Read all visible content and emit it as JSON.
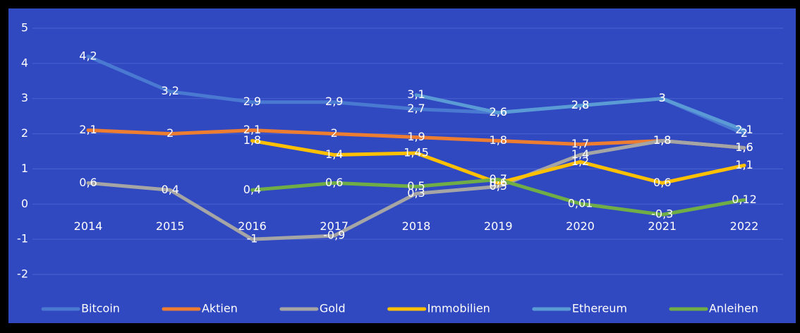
{
  "chart_data": {
    "type": "line",
    "categories": [
      "2014",
      "2015",
      "2016",
      "2017",
      "2018",
      "2019",
      "2020",
      "2021",
      "2022"
    ],
    "series": [
      {
        "name": "Bitcoin",
        "color": "#4a79d2",
        "values": [
          4.2,
          3.2,
          2.9,
          2.9,
          2.7,
          2.6,
          2.8,
          3,
          2
        ],
        "value_labels": [
          "4,2",
          "3,2",
          "2,9",
          "2,9",
          "2,7",
          "2,6",
          "2,8",
          "3",
          "2"
        ]
      },
      {
        "name": "Aktien",
        "color": "#ed7d31",
        "values": [
          2.1,
          2,
          2.1,
          2,
          1.9,
          1.8,
          1.7,
          1.8,
          1.6
        ],
        "value_labels": [
          "2,1",
          "2",
          "2,1",
          "2",
          "1,9",
          "1,8",
          "1,7",
          "1,8",
          "1,6"
        ]
      },
      {
        "name": "Gold",
        "color": "#a5a5a5",
        "values": [
          0.6,
          0.4,
          -1,
          -0.9,
          0.3,
          0.5,
          1.4,
          1.8,
          1.6
        ],
        "value_labels": [
          "0,6",
          "0,4",
          "-1",
          "-0,9",
          "0,3",
          "0,5",
          "1,4",
          "1,8",
          "1,6"
        ]
      },
      {
        "name": "Immobilien",
        "color": "#ffc000",
        "values": [
          null,
          null,
          1.8,
          1.4,
          1.45,
          0.6,
          1.2,
          0.6,
          1.1
        ],
        "value_labels": [
          null,
          null,
          "1,8",
          "1,4",
          "1,45",
          "0,6",
          "1,2",
          "0,6",
          "1,1"
        ]
      },
      {
        "name": "Ethereum",
        "color": "#5b9bd5",
        "values": [
          null,
          null,
          null,
          null,
          3.1,
          2.6,
          2.8,
          3,
          2.1
        ],
        "value_labels": [
          null,
          null,
          null,
          null,
          "3,1",
          "2,6",
          "2,8",
          "3",
          "2,1"
        ]
      },
      {
        "name": "Anleihen",
        "color": "#70ad47",
        "values": [
          null,
          null,
          0.4,
          0.6,
          0.5,
          0.7,
          0.01,
          -0.3,
          0.12
        ],
        "value_labels": [
          null,
          null,
          "0,4",
          "0,6",
          "0,5",
          "0,7",
          "0,01",
          "-0,3",
          "0,12"
        ]
      }
    ],
    "ylim": [
      -2,
      5
    ],
    "yticks": [
      -2,
      -1,
      0,
      1,
      2,
      3,
      4,
      5
    ],
    "grid": true,
    "legend": "bottom"
  }
}
